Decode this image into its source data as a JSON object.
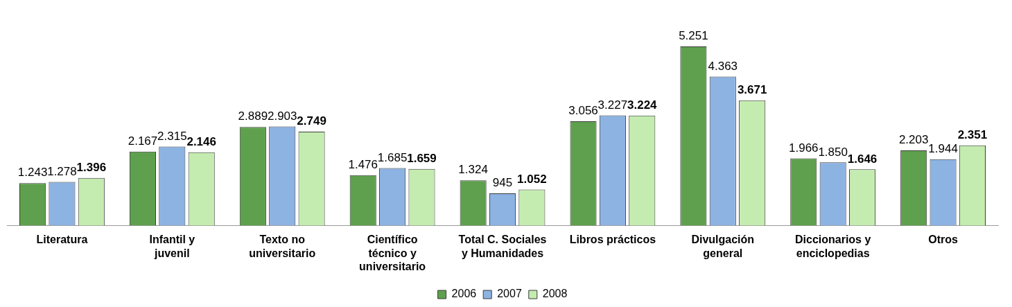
{
  "chart_data": {
    "type": "bar",
    "categories": [
      "Literatura",
      "Infantil y juvenil",
      "Texto no universitario",
      "Científico técnico y universitario",
      "Total C. Sociales y Humanidades",
      "Libros prácticos",
      "Divulgación general",
      "Diccionarios y enciclopedias",
      "Otros"
    ],
    "series": [
      {
        "name": "2006",
        "color": "#5fa04e",
        "values": [
          1243,
          2167,
          2889,
          1476,
          1324,
          3056,
          5251,
          1966,
          2203
        ],
        "value_labels": [
          "1.243",
          "2.167",
          "2.889",
          "1.476",
          "1.324",
          "3.056",
          "5.251",
          "1.966",
          "2.203"
        ]
      },
      {
        "name": "2007",
        "color": "#8db3e2",
        "values": [
          1278,
          2315,
          2903,
          1685,
          945,
          3227,
          4363,
          1850,
          1944
        ],
        "value_labels": [
          "1.278",
          "2.315",
          "2.903",
          "1.685",
          "945",
          "3.227",
          "4.363",
          "1.850",
          "1.944"
        ]
      },
      {
        "name": "2008",
        "color": "#c4ecb0",
        "values": [
          1396,
          2146,
          2749,
          1659,
          1052,
          3224,
          3671,
          1646,
          2351
        ],
        "value_labels": [
          "1.396",
          "2.146",
          "2.749",
          "1.659",
          "1.052",
          "3.224",
          "3.671",
          "1.646",
          "2.351"
        ]
      }
    ],
    "grid": false,
    "legend": "bottom"
  }
}
